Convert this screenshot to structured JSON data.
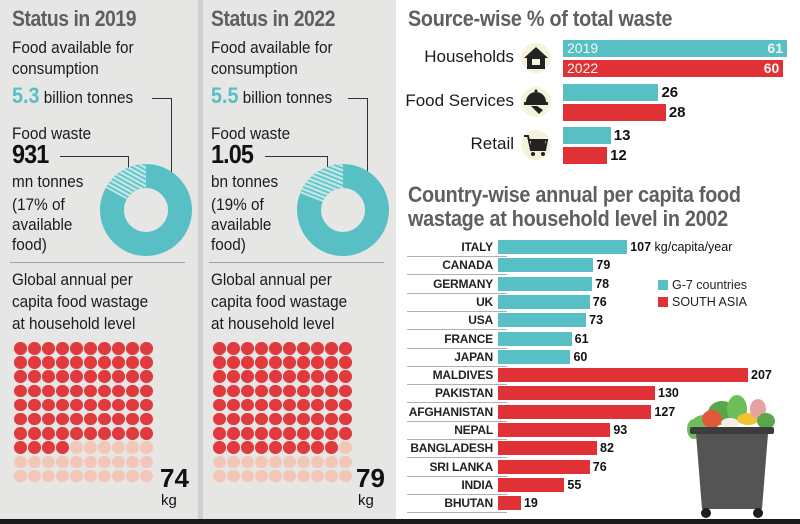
{
  "status_2019": {
    "title": "Status in 2019",
    "food_available_label_1": "Food available for",
    "food_available_label_2": "consumption",
    "food_available_value": "5.3",
    "food_available_unit": "billion tonnes",
    "food_waste_label": "Food waste",
    "food_waste_value": "931",
    "food_waste_unit": "mn tonnes",
    "share_line_1": "(17% of",
    "share_line_2": "available",
    "share_line_3": "food)",
    "waste_share_percent": 17,
    "per_capita_title_1": "Global annual per",
    "per_capita_title_2": "capita food wastage",
    "per_capita_title_3": "at household level",
    "per_capita_value": "74",
    "per_capita_unit": "kg",
    "dots_filled": 74,
    "dots_total": 100
  },
  "status_2022": {
    "title": "Status in 2022",
    "food_available_label_1": "Food available for",
    "food_available_label_2": "consumption",
    "food_available_value": "5.5",
    "food_available_unit": "billion tonnes",
    "food_waste_label": "Food waste",
    "food_waste_value": "1.05",
    "food_waste_unit": "bn tonnes",
    "share_line_1": "(19% of",
    "share_line_2": "available",
    "share_line_3": "food)",
    "waste_share_percent": 19,
    "per_capita_title_1": "Global annual per",
    "per_capita_title_2": "capita food wastage",
    "per_capita_title_3": "at household level",
    "per_capita_value": "79",
    "per_capita_unit": "kg",
    "dots_filled": 79,
    "dots_total": 100
  },
  "colors": {
    "teal": "#58c0c4",
    "red": "#df3136",
    "dot_off": "#f3c7b8",
    "panel_bg": "#e6e6e5",
    "title_gray": "#5f5f5f"
  },
  "chart_data": [
    {
      "type": "bar",
      "orientation": "horizontal",
      "title": "Source-wise % of total waste",
      "categories": [
        "Households",
        "Food Services",
        "Retail"
      ],
      "icons": [
        "house-icon",
        "food-cloche-icon",
        "shopping-cart-icon"
      ],
      "series": [
        {
          "name": "2019",
          "color": "#58c0c4",
          "values": [
            61,
            26,
            13
          ]
        },
        {
          "name": "2022",
          "color": "#df3136",
          "values": [
            60,
            28,
            12
          ]
        }
      ],
      "xlim": [
        0,
        61
      ]
    },
    {
      "type": "bar",
      "orientation": "horizontal",
      "title_line_1": "Country-wise annual per capita food",
      "title_line_2": "wastage at household level in 2002",
      "unit_label": "kg/capita/year",
      "categories": [
        "ITALY",
        "CANADA",
        "GERMANY",
        "UK",
        "USA",
        "FRANCE",
        "JAPAN",
        "MALDIVES",
        "PAKISTAN",
        "AFGHANISTAN",
        "NEPAL",
        "BANGLADESH",
        "SRI LANKA",
        "INDIA",
        "BHUTAN"
      ],
      "values": [
        107,
        79,
        78,
        76,
        73,
        61,
        60,
        207,
        130,
        127,
        93,
        82,
        76,
        55,
        19
      ],
      "groups": [
        "G-7 countries",
        "G-7 countries",
        "G-7 countries",
        "G-7 countries",
        "G-7 countries",
        "G-7 countries",
        "G-7 countries",
        "SOUTH ASIA",
        "SOUTH ASIA",
        "SOUTH ASIA",
        "SOUTH ASIA",
        "SOUTH ASIA",
        "SOUTH ASIA",
        "SOUTH ASIA",
        "SOUTH ASIA"
      ],
      "legend": [
        {
          "label": "G-7 countries",
          "color": "#58c0c4"
        },
        {
          "label": "SOUTH ASIA",
          "color": "#df3136"
        }
      ],
      "legend_position": "right",
      "xlim": [
        0,
        207
      ]
    }
  ]
}
